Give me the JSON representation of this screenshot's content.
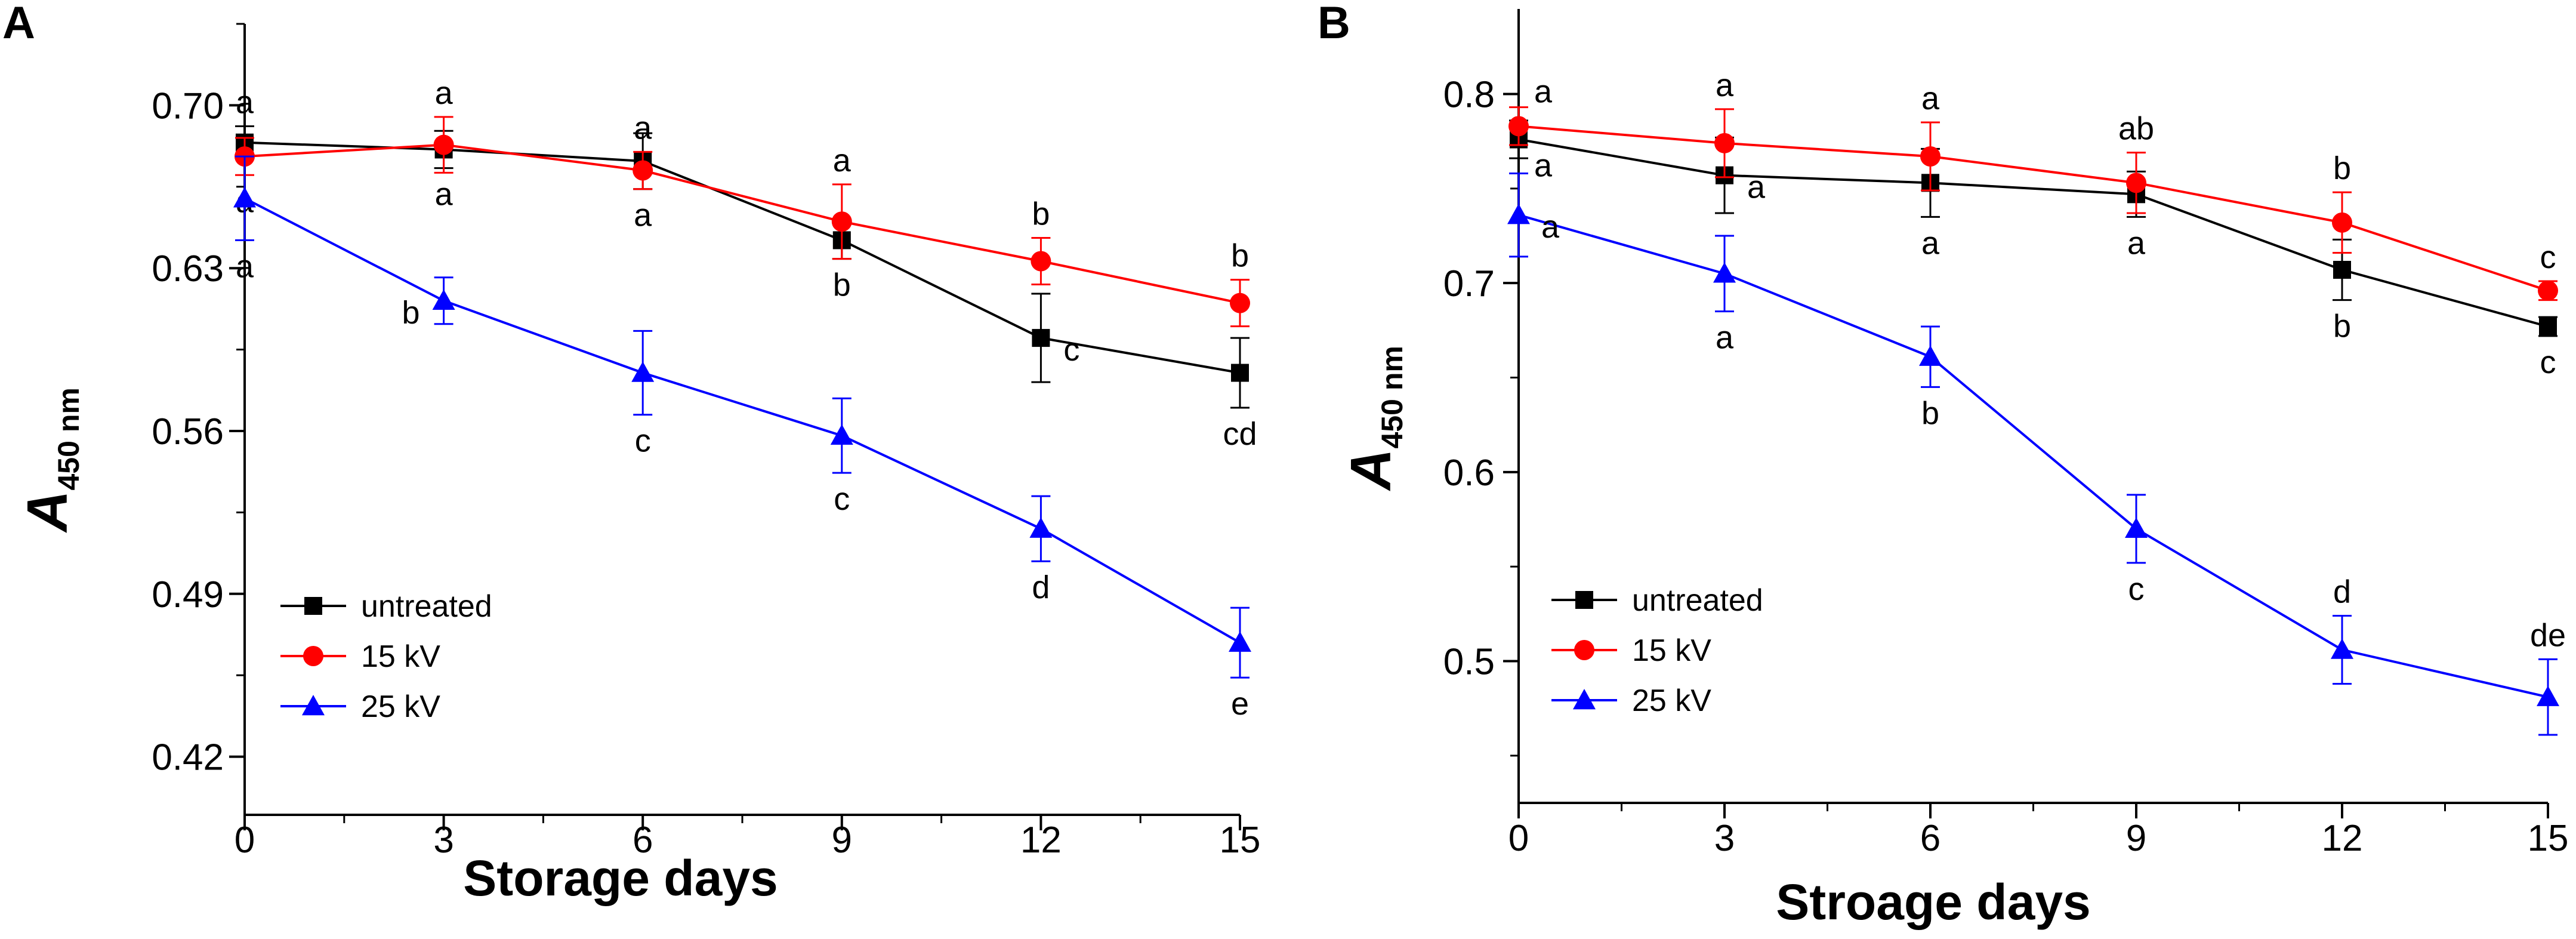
{
  "chart_data": [
    {
      "type": "line",
      "panel_label": "A",
      "xlabel": "Storage days",
      "ylabel_main": "A",
      "ylabel_sub": "450 nm",
      "x": [
        0,
        3,
        6,
        9,
        12,
        15
      ],
      "x_ticks": [
        "0",
        "3",
        "6",
        "9",
        "12",
        "15"
      ],
      "y_ticks": [
        "0.42",
        "0.49",
        "0.56",
        "0.63",
        "0.70"
      ],
      "xlim": [
        0,
        15
      ],
      "ylim": [
        0.395,
        0.735
      ],
      "legend_position": "bottom-left",
      "series": [
        {
          "name": "untreated",
          "color": "#000000",
          "marker": "square",
          "values": [
            0.684,
            0.681,
            0.676,
            0.642,
            0.6,
            0.585
          ],
          "errors": [
            0.007,
            0.008,
            0.012,
            0.008,
            0.019,
            0.015
          ],
          "labels": [
            "a",
            "a",
            "a",
            "b",
            "c",
            "cd"
          ],
          "label_pos": [
            "above",
            "below",
            "below",
            "below",
            "right",
            "below"
          ]
        },
        {
          "name": "15 kV",
          "color": "#ff0000",
          "marker": "circle",
          "values": [
            0.678,
            0.683,
            0.672,
            0.65,
            0.633,
            0.615
          ],
          "errors": [
            0.008,
            0.012,
            0.008,
            0.016,
            0.01,
            0.01
          ],
          "labels": [
            "a",
            "a",
            "a",
            "a",
            "b",
            "b"
          ],
          "label_pos": [
            "below",
            "above",
            "above",
            "above",
            "above",
            "above"
          ]
        },
        {
          "name": "25 kV",
          "color": "#0000ff",
          "marker": "triangle",
          "values": [
            0.66,
            0.616,
            0.585,
            0.558,
            0.518,
            0.469
          ],
          "errors": [
            0.018,
            0.01,
            0.018,
            0.016,
            0.014,
            0.015
          ],
          "labels": [
            "a",
            "b",
            "c",
            "c",
            "d",
            "e"
          ],
          "label_pos": [
            "below",
            "left",
            "below",
            "below",
            "below",
            "below"
          ]
        }
      ]
    },
    {
      "type": "line",
      "panel_label": "B",
      "xlabel": "Stroage days",
      "ylabel_main": "A",
      "ylabel_sub": "450 nm",
      "x": [
        0,
        3,
        6,
        9,
        12,
        15
      ],
      "x_ticks": [
        "0",
        "3",
        "6",
        "9",
        "12",
        "15"
      ],
      "y_ticks": [
        "0.5",
        "0.6",
        "0.7",
        "0.8"
      ],
      "xlim": [
        0,
        15
      ],
      "ylim": [
        0.425,
        0.845
      ],
      "legend_position": "bottom-left",
      "series": [
        {
          "name": "untreated",
          "color": "#000000",
          "marker": "square",
          "values": [
            0.776,
            0.757,
            0.753,
            0.747,
            0.707,
            0.677
          ],
          "errors": [
            0.01,
            0.02,
            0.018,
            0.012,
            0.016,
            0.005
          ],
          "labels": [
            "a",
            "a",
            "a",
            "a",
            "b",
            "c"
          ],
          "label_pos": [
            "below-right",
            "right",
            "below",
            "below",
            "below",
            "below"
          ]
        },
        {
          "name": "15 kV",
          "color": "#ff0000",
          "marker": "circle",
          "values": [
            0.783,
            0.774,
            0.767,
            0.753,
            0.732,
            0.696
          ],
          "errors": [
            0.01,
            0.018,
            0.018,
            0.016,
            0.016,
            0.005
          ],
          "labels": [
            "a",
            "a",
            "a",
            "ab",
            "b",
            "c"
          ],
          "label_pos": [
            "above-right",
            "above",
            "above",
            "above",
            "above",
            "above"
          ]
        },
        {
          "name": "25 kV",
          "color": "#0000ff",
          "marker": "triangle",
          "values": [
            0.736,
            0.705,
            0.661,
            0.57,
            0.506,
            0.481
          ],
          "errors": [
            0.022,
            0.02,
            0.016,
            0.018,
            0.018,
            0.02
          ],
          "labels": [
            "a",
            "a",
            "b",
            "c",
            "d",
            "de"
          ],
          "label_pos": [
            "right",
            "below",
            "below",
            "below",
            "above",
            "above"
          ]
        }
      ]
    }
  ]
}
